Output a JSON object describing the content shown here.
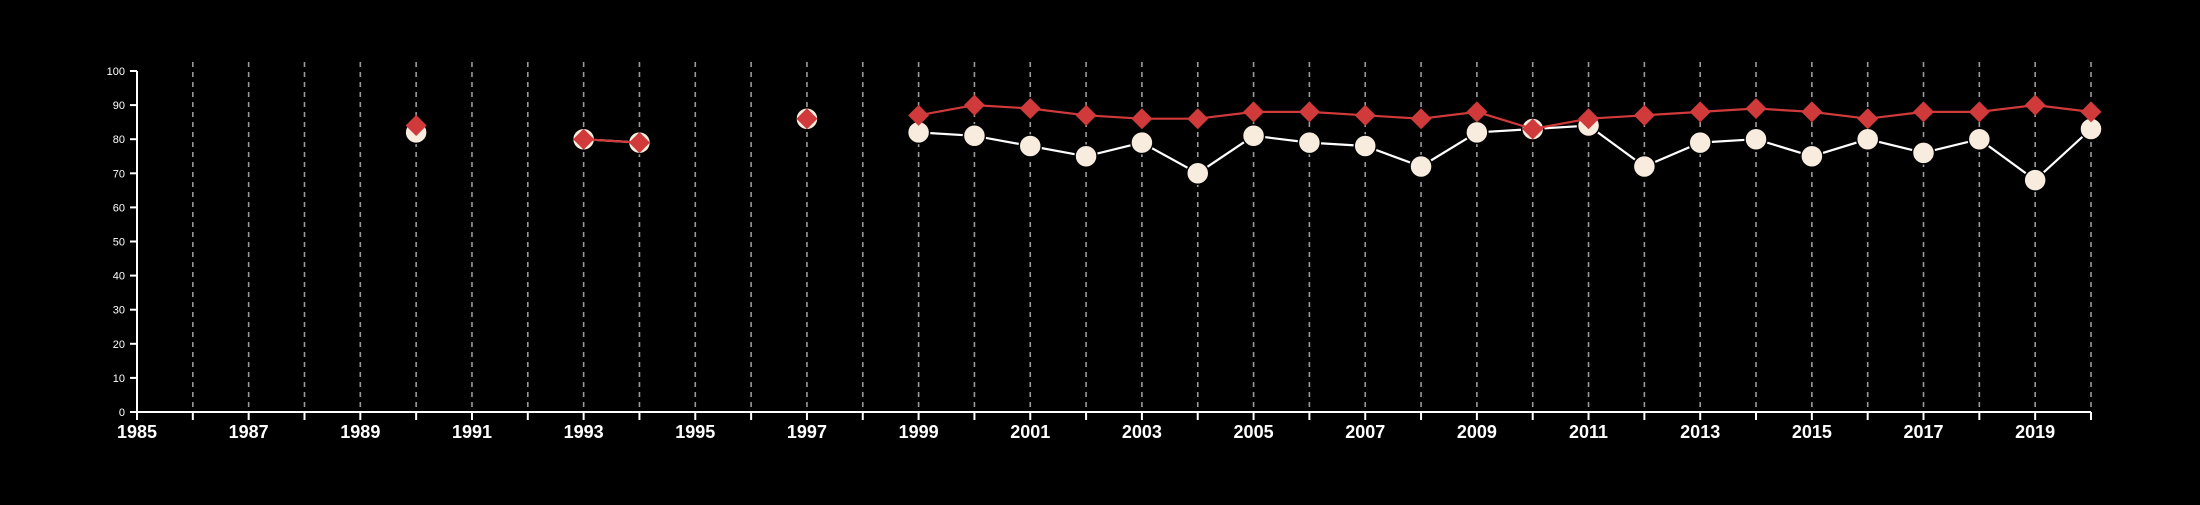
{
  "chart_data": {
    "type": "line",
    "xlim": [
      1985,
      2020
    ],
    "ylim": [
      0,
      100
    ],
    "x_ticks": [
      1985,
      1987,
      1989,
      1991,
      1993,
      1995,
      1997,
      1999,
      2001,
      2003,
      2005,
      2007,
      2009,
      2011,
      2013,
      2015,
      2017,
      2019
    ],
    "y_ticks": [
      0,
      10,
      20,
      30,
      40,
      50,
      60,
      70,
      80,
      90,
      100
    ],
    "vertical_grid": "dashed",
    "background_color": "#000000",
    "axis_color": "#ffffff",
    "series": [
      {
        "color": "#f7ecdd",
        "line_color": "#ffffff",
        "marker": "circle",
        "points": [
          [
            1990,
            82
          ],
          [
            1993,
            80
          ],
          [
            1994,
            79
          ],
          [
            1997,
            86
          ],
          [
            1999,
            82
          ],
          [
            2000,
            81
          ],
          [
            2001,
            78
          ],
          [
            2002,
            75
          ],
          [
            2003,
            79
          ],
          [
            2004,
            70
          ],
          [
            2005,
            81
          ],
          [
            2006,
            79
          ],
          [
            2007,
            78
          ],
          [
            2008,
            72
          ],
          [
            2009,
            82
          ],
          [
            2010,
            83
          ],
          [
            2011,
            84
          ],
          [
            2012,
            72
          ],
          [
            2013,
            79
          ],
          [
            2014,
            80
          ],
          [
            2015,
            75
          ],
          [
            2016,
            80
          ],
          [
            2017,
            76
          ],
          [
            2018,
            80
          ],
          [
            2019,
            68
          ],
          [
            2020,
            83
          ]
        ]
      },
      {
        "color": "#d03a3a",
        "line_color": "#d03a3a",
        "marker": "diamond",
        "points": [
          [
            1990,
            84
          ],
          [
            1993,
            80
          ],
          [
            1994,
            79
          ],
          [
            1997,
            86
          ],
          [
            1999,
            87
          ],
          [
            2000,
            90
          ],
          [
            2001,
            89
          ],
          [
            2002,
            87
          ],
          [
            2003,
            86
          ],
          [
            2004,
            86
          ],
          [
            2005,
            88
          ],
          [
            2006,
            88
          ],
          [
            2007,
            87
          ],
          [
            2008,
            86
          ],
          [
            2009,
            88
          ],
          [
            2010,
            83
          ],
          [
            2011,
            86
          ],
          [
            2012,
            87
          ],
          [
            2013,
            88
          ],
          [
            2014,
            89
          ],
          [
            2015,
            88
          ],
          [
            2016,
            86
          ],
          [
            2017,
            88
          ],
          [
            2018,
            88
          ],
          [
            2019,
            90
          ],
          [
            2020,
            88
          ]
        ]
      }
    ]
  }
}
